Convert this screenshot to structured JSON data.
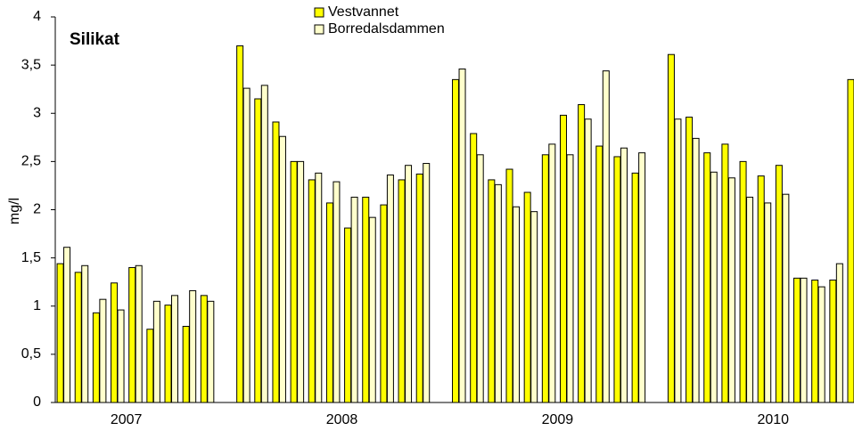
{
  "chart_data": {
    "type": "bar",
    "title": "Silikat",
    "y_label": "mg/l",
    "categories": [
      null,
      null,
      null,
      null,
      null,
      null,
      null,
      null,
      null,
      null,
      null,
      null,
      null,
      null,
      null,
      null,
      null,
      null,
      null,
      null,
      null,
      null,
      null,
      null,
      null,
      null,
      null,
      null,
      null,
      null,
      null,
      null,
      null,
      null,
      null,
      null,
      null,
      null,
      null,
      null,
      null,
      null,
      null,
      null,
      null
    ],
    "category_groups": [
      {
        "label": "2007",
        "size": 10
      },
      {
        "label": "2008",
        "size": 12
      },
      {
        "label": "2009",
        "size": 12
      },
      {
        "label": "2010",
        "size": 11
      }
    ],
    "series": [
      {
        "name": "Vestvannet",
        "color": "#ffff00",
        "values": [
          1.44,
          1.35,
          0.93,
          1.24,
          1.4,
          0.76,
          1.01,
          0.79,
          1.11,
          null,
          3.7,
          3.15,
          2.91,
          2.5,
          2.31,
          2.07,
          1.81,
          2.13,
          2.05,
          2.31,
          2.37,
          null,
          3.35,
          2.79,
          2.31,
          2.42,
          2.18,
          2.57,
          2.98,
          3.09,
          2.66,
          2.55,
          2.38,
          null,
          3.61,
          2.96,
          2.59,
          2.68,
          2.5,
          2.35,
          2.46,
          1.29,
          1.27,
          1.27,
          3.35
        ]
      },
      {
        "name": "Borredalsdammen",
        "color": "#ffffcc",
        "values": [
          1.61,
          1.42,
          1.07,
          0.96,
          1.42,
          1.05,
          1.11,
          1.16,
          1.05,
          null,
          3.26,
          3.29,
          2.76,
          2.5,
          2.38,
          2.29,
          2.13,
          1.92,
          2.36,
          2.46,
          2.48,
          null,
          3.46,
          2.57,
          2.26,
          2.03,
          1.98,
          2.68,
          2.57,
          2.94,
          3.44,
          2.64,
          2.59,
          null,
          2.94,
          2.74,
          2.39,
          2.33,
          2.13,
          2.07,
          2.16,
          1.29,
          1.2,
          1.44,
          null
        ]
      }
    ],
    "ylim": [
      0,
      4
    ],
    "yticks": [
      0,
      {
        "value": 0.5,
        "label": "0,5"
      },
      1,
      {
        "value": 1.5,
        "label": "1,5"
      },
      2,
      {
        "value": 2.5,
        "label": "2,5"
      },
      3,
      {
        "value": 3.5,
        "label": "3,5"
      },
      4
    ],
    "grid": false
  }
}
